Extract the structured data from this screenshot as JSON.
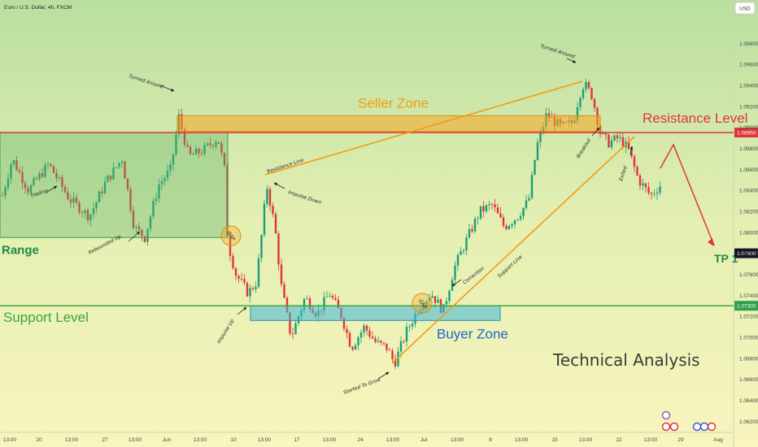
{
  "chart_data": {
    "type": "candlestick",
    "title": "Euro / U.S. Dollar, 4h, FXCM",
    "currency_button": "USD",
    "y_axis": {
      "ticks": [
        "1.09800",
        "1.09600",
        "1.09400",
        "1.09200",
        "1.09000",
        "1.08800",
        "1.08600",
        "1.08400",
        "1.08200",
        "1.08000",
        "1.07800",
        "1.07600",
        "1.07400",
        "1.07200",
        "1.07000",
        "1.06800",
        "1.06600",
        "1.06400",
        "1.06200"
      ],
      "range": [
        1.0616,
        1.0998
      ]
    },
    "x_axis": {
      "ticks": [
        "13:00",
        "20",
        "13:00",
        "27",
        "13:00",
        "Jun",
        "13:00",
        "10",
        "13:00",
        "17",
        "13:00",
        "24",
        "13:00",
        "Jul",
        "13:00",
        "8",
        "13:00",
        "15",
        "13:00",
        "22",
        "13:00",
        "29",
        "Aug"
      ]
    },
    "price_tags": [
      {
        "value": 1.0895,
        "label": "1.08950",
        "color": "#e0343c"
      },
      {
        "value": 1.078,
        "label": "1.07800",
        "color": "#131722"
      },
      {
        "value": 1.073,
        "label": "1.07300",
        "color": "#2e9e4f"
      }
    ],
    "levels": {
      "resistance": {
        "label": "Resistance Level",
        "value": 1.0895,
        "color": "#e0343c"
      },
      "support": {
        "label": "Support Level",
        "value": 1.073,
        "color": "#3aa63f"
      }
    },
    "zones": [
      {
        "label": "Seller Zone",
        "from": 1.0896,
        "to": 1.0911,
        "color": "#f5a623"
      },
      {
        "label": "Buyer Zone",
        "from": 1.0716,
        "to": 1.073,
        "color": "#3fb6d8"
      },
      {
        "label": "Range",
        "from": 1.0795,
        "to": 1.0895,
        "color": "#58b368"
      }
    ],
    "annotations": [
      "Turned Around",
      "Trading",
      "Rebounded Up",
      "Resistance Line",
      "Impulse Down",
      "Impulse Up",
      "Started To Grow",
      "Correction",
      "Support Line",
      "Turned Around",
      "Breakout",
      "Exited",
      "GAP",
      "GAP"
    ],
    "target": {
      "label": "TP 1",
      "value": 1.078
    },
    "watermark": "Technical Analysis"
  }
}
